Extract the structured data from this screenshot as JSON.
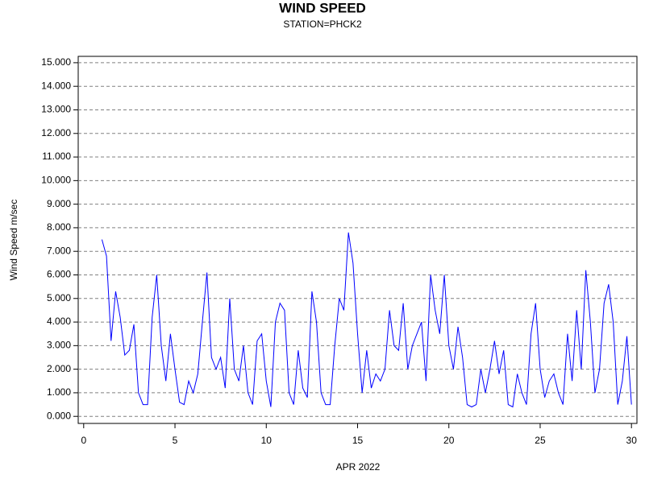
{
  "chart_data": {
    "type": "line",
    "title": "WIND SPEED",
    "subtitle": "STATION=PHCK2",
    "x_label": "APR 2022",
    "y_label": "Wind Speed m/sec",
    "xlim": [
      -0.3,
      30.3
    ],
    "xticks": [
      0,
      5,
      10,
      15,
      20,
      25,
      30
    ],
    "ylim": [
      -0.3,
      15.27
    ],
    "yticks": [
      {
        "value": 0,
        "label": "0.000"
      },
      {
        "value": 1,
        "label": "1.000"
      },
      {
        "value": 2,
        "label": "2.000"
      },
      {
        "value": 3,
        "label": "3.000"
      },
      {
        "value": 4,
        "label": "4.000"
      },
      {
        "value": 5,
        "label": "5.000"
      },
      {
        "value": 6,
        "label": "6.000"
      },
      {
        "value": 7,
        "label": "7.000"
      },
      {
        "value": 8,
        "label": "8.000"
      },
      {
        "value": 9,
        "label": "9.000"
      },
      {
        "value": 10,
        "label": "10.000"
      },
      {
        "value": 11,
        "label": "11.000"
      },
      {
        "value": 12,
        "label": "12.000"
      },
      {
        "value": 13,
        "label": "13.000"
      },
      {
        "value": 14,
        "label": "14.000"
      },
      {
        "value": 15,
        "label": "15.000"
      }
    ],
    "grid": true,
    "x": [
      1,
      1.25,
      1.5,
      1.75,
      2,
      2.25,
      2.5,
      2.75,
      3,
      3.25,
      3.5,
      3.75,
      4,
      4.25,
      4.5,
      4.75,
      5,
      5.25,
      5.5,
      5.75,
      6,
      6.25,
      6.5,
      6.75,
      7,
      7.25,
      7.5,
      7.75,
      8,
      8.25,
      8.5,
      8.75,
      9,
      9.25,
      9.5,
      9.75,
      10,
      10.25,
      10.5,
      10.75,
      11,
      11.25,
      11.5,
      11.75,
      12,
      12.25,
      12.5,
      12.75,
      13,
      13.25,
      13.5,
      13.75,
      14,
      14.25,
      14.5,
      14.75,
      15,
      15.25,
      15.5,
      15.75,
      16,
      16.25,
      16.5,
      16.75,
      17,
      17.25,
      17.5,
      17.75,
      18,
      18.25,
      18.5,
      18.75,
      19,
      19.25,
      19.5,
      19.75,
      20,
      20.25,
      20.5,
      20.75,
      21,
      21.25,
      21.5,
      21.75,
      22,
      22.25,
      22.5,
      22.75,
      23,
      23.25,
      23.5,
      23.75,
      24,
      24.25,
      24.5,
      24.75,
      25,
      25.25,
      25.5,
      25.75,
      26,
      26.25,
      26.5,
      26.75,
      27,
      27.25,
      27.5,
      27.75,
      28,
      28.25,
      28.5,
      28.75,
      29,
      29.25,
      29.5,
      29.75,
      30
    ],
    "series": [
      {
        "name": "Wind Speed",
        "color": "#0000ff",
        "values": [
          7.5,
          6.8,
          3.2,
          5.3,
          4.2,
          2.6,
          2.8,
          3.9,
          1.0,
          0.5,
          0.5,
          4.2,
          6.0,
          3.0,
          1.5,
          3.5,
          2.0,
          0.6,
          0.5,
          1.5,
          1.0,
          1.8,
          4.0,
          6.1,
          2.5,
          2.0,
          2.5,
          1.2,
          5.0,
          2.0,
          1.5,
          3.0,
          1.0,
          0.5,
          3.2,
          3.5,
          1.5,
          0.4,
          4.0,
          4.8,
          4.5,
          1.0,
          0.5,
          2.8,
          1.2,
          0.8,
          5.3,
          4.0,
          1.0,
          0.5,
          0.5,
          3.0,
          5.0,
          4.5,
          7.8,
          6.5,
          3.5,
          1.0,
          2.8,
          1.2,
          1.8,
          1.5,
          2.0,
          4.5,
          3.0,
          2.8,
          4.8,
          2.0,
          3.0,
          3.5,
          4.0,
          1.5,
          6.0,
          4.5,
          3.5,
          6.0,
          3.0,
          2.0,
          3.8,
          2.5,
          0.5,
          0.4,
          0.5,
          2.0,
          1.0,
          2.0,
          3.2,
          1.8,
          2.8,
          0.5,
          0.4,
          1.8,
          1.0,
          0.5,
          3.5,
          4.8,
          2.0,
          0.8,
          1.5,
          1.8,
          1.0,
          0.5,
          3.5,
          1.5,
          4.5,
          2.0,
          6.2,
          4.0,
          1.0,
          2.0,
          4.8,
          5.6,
          4.0,
          0.5,
          1.5,
          3.4,
          0.5
        ]
      }
    ]
  }
}
